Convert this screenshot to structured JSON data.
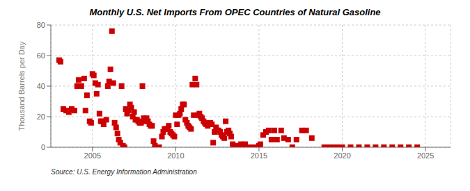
{
  "chart_data": {
    "type": "scatter",
    "title": "Monthly U.S. Net Imports From OPEC Countries of Natural Gasoline",
    "y_label": "Thousand Barrels per Day",
    "annotations": [
      "Source: U.S. Energy Information Administration"
    ],
    "color": "#cc0000",
    "marker": "square",
    "grid": true,
    "xlim": [
      2002.5,
      2026.5
    ],
    "ylim": [
      0,
      80
    ],
    "xticks": [
      2005,
      2010,
      2015,
      2020,
      2025
    ],
    "yticks": [
      0,
      20,
      40,
      60,
      80
    ],
    "x": [
      2003.0,
      2003.08,
      2003.25,
      2003.42,
      2003.58,
      2003.75,
      2003.92,
      2004.08,
      2004.17,
      2004.33,
      2004.5,
      2004.58,
      2004.67,
      2004.83,
      2004.92,
      2005.0,
      2005.08,
      2005.17,
      2005.25,
      2005.33,
      2005.42,
      2005.5,
      2005.58,
      2005.67,
      2005.83,
      2005.92,
      2006.0,
      2006.08,
      2006.17,
      2006.25,
      2006.33,
      2006.42,
      2006.5,
      2006.58,
      2006.67,
      2006.75,
      2006.83,
      2006.92,
      2007.0,
      2007.08,
      2007.17,
      2007.25,
      2007.33,
      2007.42,
      2007.5,
      2007.58,
      2007.67,
      2007.75,
      2007.83,
      2007.92,
      2008.0,
      2008.08,
      2008.17,
      2008.25,
      2008.33,
      2008.42,
      2008.5,
      2008.58,
      2008.67,
      2008.75,
      2009.0,
      2009.17,
      2009.25,
      2009.33,
      2009.42,
      2009.5,
      2009.58,
      2009.67,
      2009.75,
      2009.83,
      2009.92,
      2010.0,
      2010.08,
      2010.17,
      2010.25,
      2010.33,
      2010.42,
      2010.5,
      2010.58,
      2010.67,
      2010.75,
      2010.83,
      2010.92,
      2011.0,
      2011.08,
      2011.17,
      2011.25,
      2011.33,
      2011.42,
      2011.5,
      2011.58,
      2011.67,
      2011.75,
      2011.83,
      2011.92,
      2012.0,
      2012.08,
      2012.17,
      2012.25,
      2012.33,
      2012.42,
      2012.5,
      2012.58,
      2012.67,
      2012.75,
      2012.83,
      2012.92,
      2013.0,
      2013.08,
      2013.17,
      2013.25,
      2013.33,
      2013.42,
      2013.58,
      2013.67,
      2013.75,
      2013.83,
      2013.92,
      2014.0,
      2014.17,
      2014.25,
      2014.33,
      2014.42,
      2014.5,
      2014.58,
      2014.67,
      2014.75,
      2014.83,
      2014.92,
      2015.0,
      2015.08,
      2015.25,
      2015.42,
      2015.58,
      2015.75,
      2015.92,
      2016.08,
      2016.33,
      2016.5,
      2016.75,
      2017.0,
      2017.25,
      2017.58,
      2017.83,
      2018.17,
      2018.92,
      2019.08,
      2019.33,
      2019.58,
      2019.83,
      2020.0,
      2020.5,
      2021.0,
      2021.5,
      2022.0,
      2022.5,
      2023.0,
      2023.5,
      2024.0,
      2024.5
    ],
    "values": [
      57,
      56,
      25,
      24,
      23,
      25,
      24,
      40,
      44,
      40,
      45,
      24,
      34,
      17,
      16,
      48,
      47,
      42,
      35,
      41,
      22,
      17,
      17,
      15,
      18,
      40,
      43,
      51,
      76,
      42,
      16,
      13,
      9,
      5,
      3,
      40,
      1,
      0,
      25,
      22,
      24,
      28,
      26,
      20,
      23,
      18,
      18,
      17,
      16,
      16,
      40,
      19,
      17,
      19,
      17,
      15,
      14,
      14,
      4,
      1,
      0,
      7,
      10,
      12,
      12,
      12,
      14,
      10,
      9,
      8,
      7,
      21,
      15,
      21,
      22,
      25,
      28,
      28,
      18,
      16,
      14,
      13,
      12,
      41,
      21,
      45,
      41,
      21,
      22,
      20,
      19,
      17,
      16,
      15,
      14,
      15,
      16,
      15,
      3,
      10,
      13,
      11,
      11,
      10,
      8,
      7,
      6,
      17,
      10,
      11,
      9,
      7,
      2,
      1,
      0,
      0,
      1,
      2,
      0,
      2,
      0,
      0,
      0,
      0,
      0,
      0,
      0,
      0,
      0,
      1,
      2,
      8,
      10,
      11,
      5,
      11,
      5,
      11,
      6,
      5,
      0,
      5,
      11,
      11,
      6,
      0,
      0,
      0,
      0,
      0,
      0,
      0,
      0,
      0,
      0,
      0,
      0,
      0,
      0,
      0
    ]
  }
}
